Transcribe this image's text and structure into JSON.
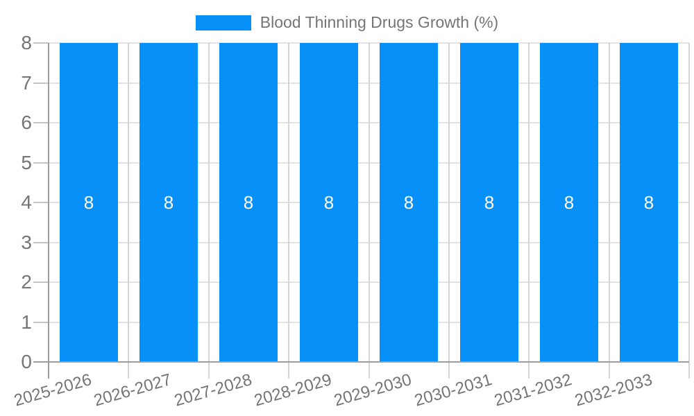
{
  "legend": {
    "label": "Blood Thinning Drugs Growth (%)"
  },
  "colors": {
    "accent": "#0690f8",
    "text": "#757575",
    "axis": "#9e9e9e",
    "grid_horizontal": "#e2e2e2",
    "grid_vertical": "#d4d4d4",
    "tick": "#c4c4c4",
    "value_label": "#ffffff",
    "background": "#ffffff"
  },
  "chart_data": {
    "type": "bar",
    "title": "Blood Thinning Drugs Growth (%)",
    "categories": [
      "2025-2026",
      "2026-2027",
      "2027-2028",
      "2028-2029",
      "2029-2030",
      "2030-2031",
      "2031-2032",
      "2032-2033"
    ],
    "values": [
      8,
      8,
      8,
      8,
      8,
      8,
      8,
      8
    ],
    "value_labels": [
      "8",
      "8",
      "8",
      "8",
      "8",
      "8",
      "8",
      "8"
    ],
    "ytick_labels": [
      "0",
      "1",
      "2",
      "3",
      "4",
      "5",
      "6",
      "7",
      "8"
    ],
    "yticks": [
      0,
      1,
      2,
      3,
      4,
      5,
      6,
      7,
      8
    ],
    "ylim": [
      0,
      8
    ],
    "xlabel": "",
    "ylabel": "",
    "grid": true,
    "legend_position": "top"
  }
}
